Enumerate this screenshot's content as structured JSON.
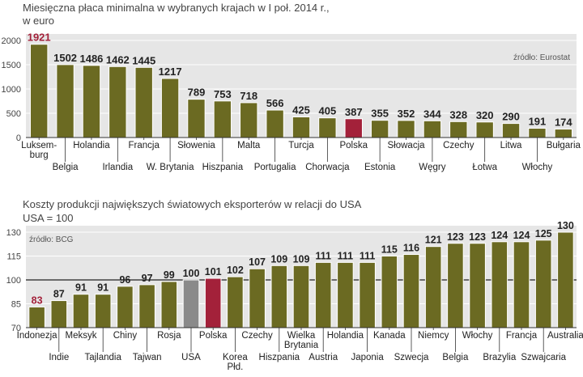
{
  "chart_data": [
    {
      "type": "bar",
      "title": "Miesięczna płaca minimalna w wybranych krajach w I poł. 2014 r.,",
      "subtitle": "w euro",
      "source": "źródło: Eurostat",
      "categories": [
        "Luksem-burg",
        "Belgia",
        "Holandia",
        "Irlandia",
        "Francja",
        "W. Brytania",
        "Słowenia",
        "Hiszpania",
        "Malta",
        "Portugalia",
        "Turcja",
        "Chorwacja",
        "Polska",
        "Estonia",
        "Słowacja",
        "Węgry",
        "Czechy",
        "Łotwa",
        "Litwa",
        "Włochy",
        "Bułgaria"
      ],
      "values": [
        1921,
        1502,
        1486,
        1462,
        1445,
        1217,
        789,
        753,
        718,
        566,
        425,
        405,
        387,
        355,
        352,
        344,
        328,
        320,
        290,
        191,
        174
      ],
      "highlight": {
        "Luksem-burg": "#a3213a",
        "Polska": "#a3213a"
      },
      "ylim": [
        0,
        2000
      ],
      "yticks": [
        0,
        500,
        1000,
        1500,
        2000
      ],
      "grid": true,
      "colors": {
        "bar": "#6b6a22",
        "highlight": "#a3213a",
        "background": "#e6e6e6",
        "label_max": "#a3213a"
      }
    },
    {
      "type": "bar",
      "title": "Koszty produkcji największych światowych eksporterów w relacji do USA",
      "subtitle": "USA = 100",
      "source": "źródło: BCG",
      "categories": [
        "Indonezja",
        "Indie",
        "Meksyk",
        "Tajlandia",
        "Chiny",
        "Tajwan",
        "Rosja",
        "USA",
        "Polska",
        "Korea Płd.",
        "Czechy",
        "Hiszpania",
        "Wielka Brytania",
        "Austria",
        "Holandia",
        "Japonia",
        "Kanada",
        "Szwecja",
        "Niemcy",
        "Belgia",
        "Włochy",
        "Brazylia",
        "Francja",
        "Szwajcaria",
        "Australia"
      ],
      "values": [
        83,
        87,
        91,
        91,
        96,
        97,
        99,
        100,
        101,
        102,
        107,
        109,
        109,
        111,
        111,
        111,
        115,
        116,
        121,
        123,
        123,
        124,
        124,
        125,
        130
      ],
      "highlight": {
        "USA": "#8a8a8a",
        "Polska": "#a3213a",
        "Indonezja": "#a3213a"
      },
      "ylim": [
        70,
        130
      ],
      "yticks": [
        70,
        85,
        100,
        115,
        130
      ],
      "baseline": 100,
      "grid": true,
      "colors": {
        "bar": "#6b6a22",
        "background": "#e6e6e6",
        "label_min": "#a3213a"
      }
    }
  ]
}
